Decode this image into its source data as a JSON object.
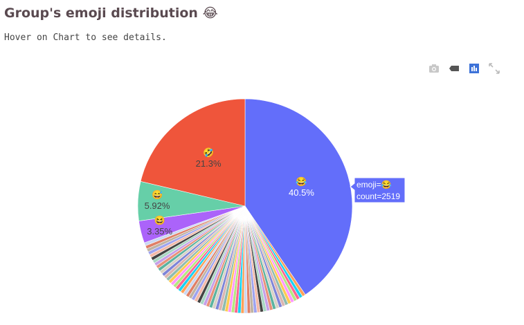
{
  "page": {
    "title": "Group's emoji distribution",
    "title_emoji": "😂",
    "subtitle": "Hover on Chart to see details."
  },
  "modebar": {
    "buttons": [
      {
        "name": "camera-icon",
        "title": "Download plot as a png"
      },
      {
        "name": "eraser-icon",
        "title": "Reset"
      },
      {
        "name": "chart-logo-icon",
        "title": "Produced with Plotly"
      },
      {
        "name": "expand-icon",
        "title": "Expand"
      }
    ]
  },
  "chart_data": {
    "type": "pie",
    "direction": "clockwise",
    "start_angle_deg": 0,
    "slices": [
      {
        "label": "😂",
        "percent": 40.5,
        "text": "40.5%",
        "color": "#636efa"
      },
      {
        "label": "🤣",
        "percent": 21.3,
        "text": "21.3%",
        "color": "#ef553b"
      },
      {
        "label": "😅",
        "percent": 5.92,
        "text": "5.92%",
        "color": "#66cfa8"
      },
      {
        "label": "😆",
        "percent": 3.35,
        "text": "3.35%",
        "color": "#ab63fa"
      }
    ],
    "other_slices_colors": [
      "#ffa15a",
      "#19d3f3",
      "#ff6692",
      "#b6e880",
      "#ff97ff",
      "#fecb52",
      "#8fbcb0",
      "#dcb6b0",
      "#7e84d8",
      "#d9d2c5",
      "#5cb3a0",
      "#e8917a",
      "#c6a0e8",
      "#a8d7c3",
      "#444",
      "#f4b9a8",
      "#9ea3f0",
      "#bfb3a4",
      "#e07f66",
      "#cad7f2"
    ],
    "other_percent_total": 28.93,
    "hover": {
      "line1": "emoji=😂",
      "line2": "count=2519",
      "color": "#636efa"
    }
  }
}
